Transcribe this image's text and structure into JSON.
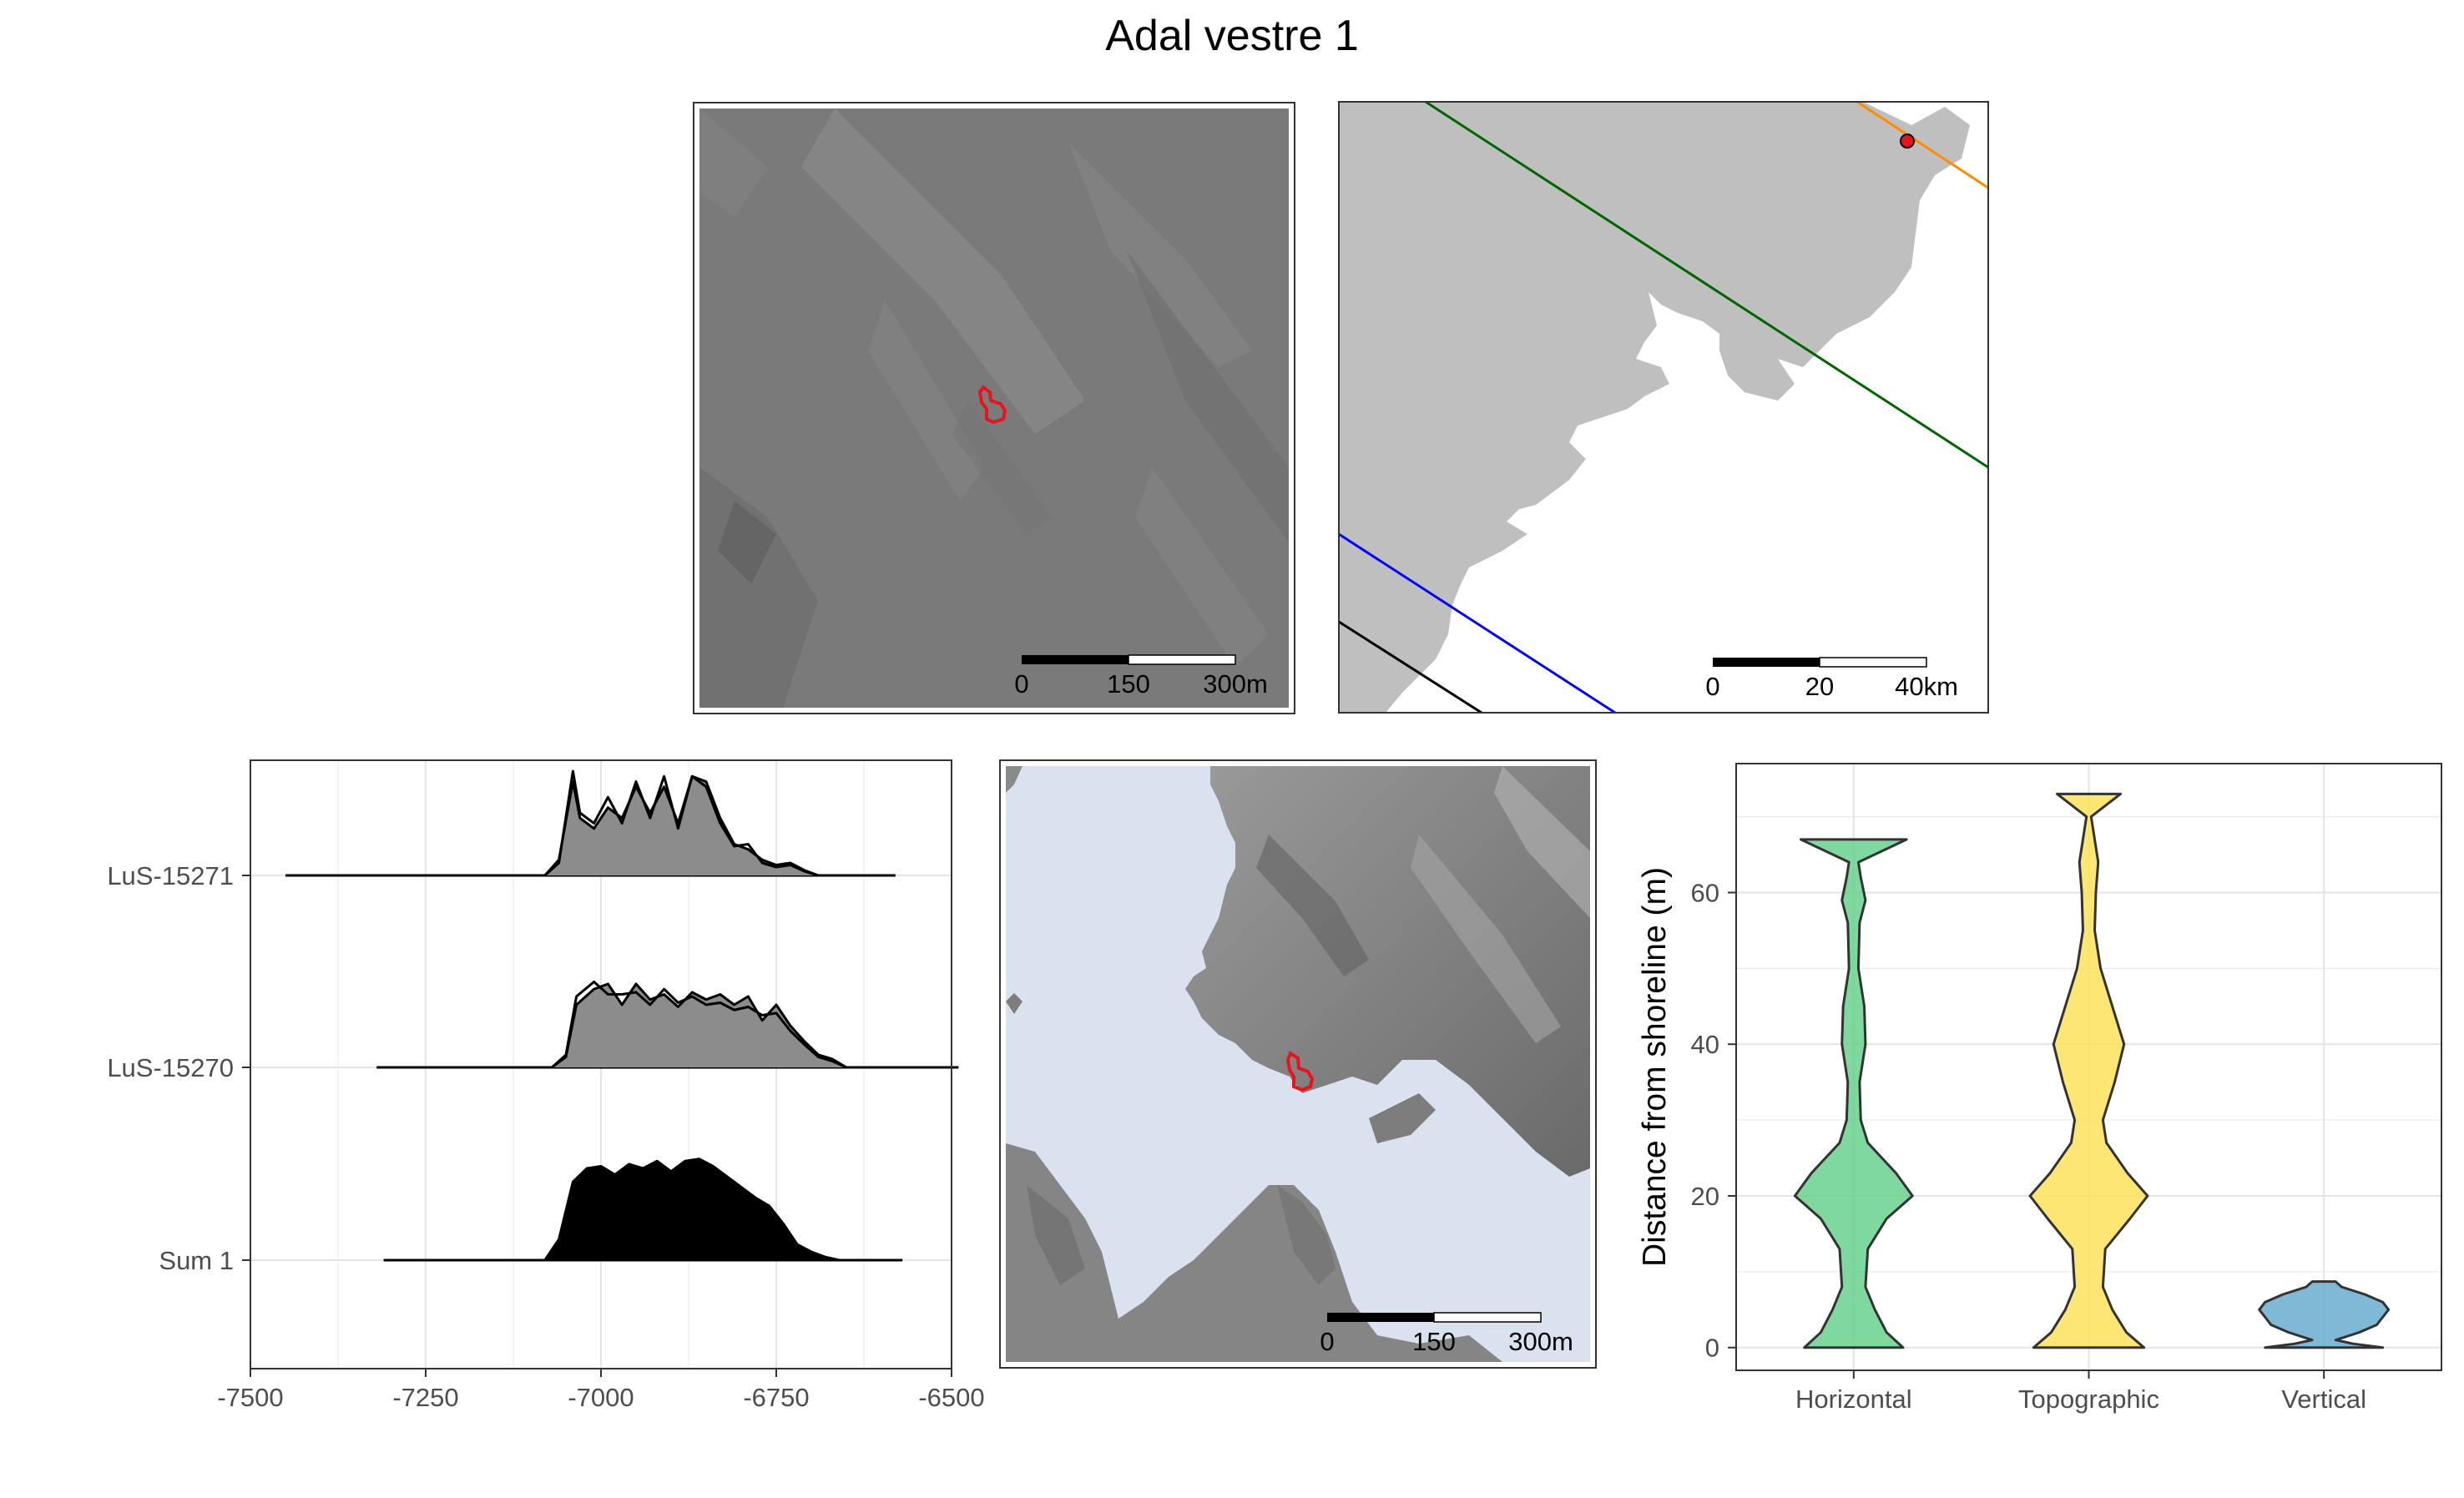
{
  "title": "Adal vestre 1",
  "colors": {
    "site_outline": "#e8141b",
    "sea": "#dae2ef",
    "land": "#bfbfbf",
    "line_orange": "#ff8c00",
    "line_green": "#006400",
    "line_blue": "#0000ff",
    "line_black": "#000000",
    "density_fill": "#8c8c8c",
    "sum_fill": "#000000"
  },
  "maps": {
    "site_map": {
      "scalebar": {
        "labels": [
          "0",
          "150",
          "300m"
        ]
      }
    },
    "overview_map": {
      "scalebar": {
        "labels": [
          "0",
          "20",
          "40km"
        ]
      },
      "site_marker_color": "#e8141b"
    },
    "shoreline_map": {
      "scalebar": {
        "labels": [
          "0",
          "150",
          "300m"
        ]
      }
    }
  },
  "chart_data": [
    {
      "type": "area",
      "kind": "ridgeline",
      "title": "",
      "xlabel": "",
      "ylabel": "",
      "xlim": [
        -7500,
        -6500
      ],
      "xticks": [
        -7500,
        -7250,
        -7000,
        -6750,
        -6500
      ],
      "xtick_labels": [
        "-7500",
        "-7250",
        "-7000",
        "-6750",
        "-6500"
      ],
      "grid": true,
      "series": [
        {
          "name": "LuS-15271",
          "range": [
            -7450,
            -6580
          ],
          "fill": "#8c8c8c",
          "curves": [
            [
              [
                -7080,
                0
              ],
              [
                -7060,
                0.15
              ],
              [
                -7040,
                0.9
              ],
              [
                -7030,
                0.55
              ],
              [
                -7010,
                0.45
              ],
              [
                -6990,
                0.65
              ],
              [
                -6970,
                0.55
              ],
              [
                -6950,
                0.85
              ],
              [
                -6930,
                0.6
              ],
              [
                -6910,
                0.85
              ],
              [
                -6890,
                0.5
              ],
              [
                -6870,
                0.95
              ],
              [
                -6850,
                0.9
              ],
              [
                -6830,
                0.55
              ],
              [
                -6810,
                0.3
              ],
              [
                -6790,
                0.25
              ],
              [
                -6770,
                0.15
              ],
              [
                -6750,
                0.1
              ],
              [
                -6730,
                0.12
              ],
              [
                -6710,
                0.05
              ],
              [
                -6690,
                0
              ]
            ],
            [
              [
                -7080,
                0
              ],
              [
                -7060,
                0.12
              ],
              [
                -7040,
                1.0
              ],
              [
                -7030,
                0.6
              ],
              [
                -7010,
                0.5
              ],
              [
                -6990,
                0.75
              ],
              [
                -6970,
                0.5
              ],
              [
                -6950,
                0.9
              ],
              [
                -6930,
                0.55
              ],
              [
                -6910,
                0.95
              ],
              [
                -6890,
                0.45
              ],
              [
                -6870,
                0.95
              ],
              [
                -6850,
                0.85
              ],
              [
                -6830,
                0.5
              ],
              [
                -6810,
                0.28
              ],
              [
                -6790,
                0.3
              ],
              [
                -6770,
                0.12
              ],
              [
                -6750,
                0.08
              ],
              [
                -6730,
                0.1
              ],
              [
                -6710,
                0.04
              ],
              [
                -6690,
                0
              ]
            ]
          ]
        },
        {
          "name": "LuS-15270",
          "range": [
            -7320,
            -6490
          ],
          "fill": "#8c8c8c",
          "curves": [
            [
              [
                -7070,
                0
              ],
              [
                -7050,
                0.1
              ],
              [
                -7035,
                0.6
              ],
              [
                -7010,
                0.75
              ],
              [
                -6990,
                0.8
              ],
              [
                -6970,
                0.6
              ],
              [
                -6950,
                0.8
              ],
              [
                -6930,
                0.65
              ],
              [
                -6910,
                0.7
              ],
              [
                -6890,
                0.58
              ],
              [
                -6870,
                0.72
              ],
              [
                -6850,
                0.65
              ],
              [
                -6830,
                0.7
              ],
              [
                -6810,
                0.6
              ],
              [
                -6790,
                0.68
              ],
              [
                -6770,
                0.45
              ],
              [
                -6750,
                0.6
              ],
              [
                -6730,
                0.4
              ],
              [
                -6710,
                0.25
              ],
              [
                -6690,
                0.12
              ],
              [
                -6670,
                0.08
              ],
              [
                -6650,
                0
              ]
            ],
            [
              [
                -7070,
                0
              ],
              [
                -7050,
                0.12
              ],
              [
                -7035,
                0.68
              ],
              [
                -7010,
                0.82
              ],
              [
                -6990,
                0.7
              ],
              [
                -6970,
                0.7
              ],
              [
                -6950,
                0.72
              ],
              [
                -6930,
                0.6
              ],
              [
                -6910,
                0.75
              ],
              [
                -6890,
                0.62
              ],
              [
                -6870,
                0.68
              ],
              [
                -6850,
                0.6
              ],
              [
                -6830,
                0.62
              ],
              [
                -6810,
                0.55
              ],
              [
                -6790,
                0.58
              ],
              [
                -6770,
                0.5
              ],
              [
                -6750,
                0.52
              ],
              [
                -6730,
                0.35
              ],
              [
                -6710,
                0.22
              ],
              [
                -6690,
                0.1
              ],
              [
                -6670,
                0.06
              ],
              [
                -6650,
                0
              ]
            ]
          ]
        },
        {
          "name": "Sum 1",
          "range": [
            -7310,
            -6570
          ],
          "fill": "#000000",
          "curves": [
            [
              [
                -7080,
                0
              ],
              [
                -7060,
                0.2
              ],
              [
                -7040,
                0.75
              ],
              [
                -7020,
                0.88
              ],
              [
                -7000,
                0.9
              ],
              [
                -6980,
                0.82
              ],
              [
                -6960,
                0.92
              ],
              [
                -6940,
                0.88
              ],
              [
                -6920,
                0.95
              ],
              [
                -6900,
                0.85
              ],
              [
                -6880,
                0.95
              ],
              [
                -6860,
                0.97
              ],
              [
                -6840,
                0.9
              ],
              [
                -6820,
                0.8
              ],
              [
                -6800,
                0.7
              ],
              [
                -6780,
                0.6
              ],
              [
                -6760,
                0.52
              ],
              [
                -6740,
                0.35
              ],
              [
                -6720,
                0.15
              ],
              [
                -6700,
                0.08
              ],
              [
                -6680,
                0.03
              ],
              [
                -6660,
                0
              ]
            ]
          ]
        }
      ]
    },
    {
      "type": "violin",
      "title": "",
      "xlabel": "",
      "ylabel": "Distance from shoreline (m)",
      "categories": [
        "Horizontal",
        "Topographic",
        "Vertical"
      ],
      "ylim": [
        -3,
        77
      ],
      "yticks": [
        0,
        20,
        40,
        60
      ],
      "grid": true,
      "series": [
        {
          "name": "Horizontal",
          "color": "#5fd086",
          "profile": [
            [
              0,
              0.42
            ],
            [
              2,
              0.28
            ],
            [
              5,
              0.18
            ],
            [
              8,
              0.1
            ],
            [
              13,
              0.12
            ],
            [
              17,
              0.28
            ],
            [
              20,
              0.5
            ],
            [
              23,
              0.36
            ],
            [
              27,
              0.12
            ],
            [
              30,
              0.06
            ],
            [
              35,
              0.05
            ],
            [
              40,
              0.1
            ],
            [
              45,
              0.09
            ],
            [
              50,
              0.04
            ],
            [
              56,
              0.05
            ],
            [
              59,
              0.1
            ],
            [
              62,
              0.06
            ],
            [
              64,
              0.04
            ],
            [
              67,
              0.45
            ]
          ]
        },
        {
          "name": "Topographic",
          "color": "#fee052",
          "profile": [
            [
              0,
              0.47
            ],
            [
              2,
              0.32
            ],
            [
              5,
              0.2
            ],
            [
              8,
              0.12
            ],
            [
              13,
              0.14
            ],
            [
              17,
              0.35
            ],
            [
              20,
              0.5
            ],
            [
              23,
              0.33
            ],
            [
              27,
              0.15
            ],
            [
              30,
              0.12
            ],
            [
              35,
              0.22
            ],
            [
              40,
              0.3
            ],
            [
              45,
              0.2
            ],
            [
              50,
              0.1
            ],
            [
              55,
              0.05
            ],
            [
              60,
              0.06
            ],
            [
              64,
              0.08
            ],
            [
              66,
              0.06
            ],
            [
              70,
              0.02
            ],
            [
              73,
              0.27
            ]
          ]
        },
        {
          "name": "Vertical",
          "color": "#5fa8cc",
          "profile": [
            [
              0,
              0.5
            ],
            [
              0.5,
              0.25
            ],
            [
              1,
              0.1
            ],
            [
              2,
              0.3
            ],
            [
              3,
              0.45
            ],
            [
              4,
              0.5
            ],
            [
              5,
              0.55
            ],
            [
              6,
              0.5
            ],
            [
              7,
              0.35
            ],
            [
              8,
              0.15
            ],
            [
              8.7,
              0.1
            ]
          ]
        }
      ]
    }
  ]
}
